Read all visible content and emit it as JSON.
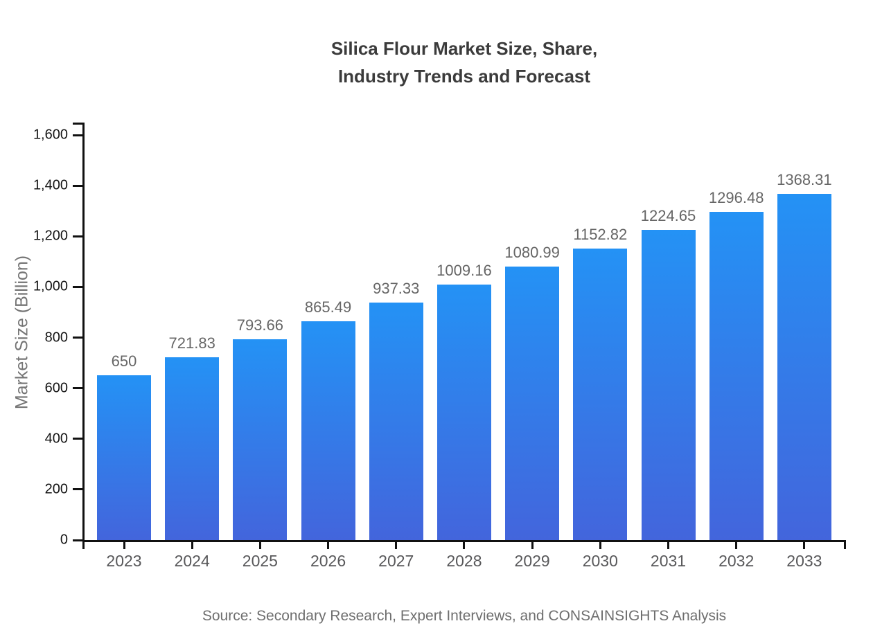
{
  "title": {
    "line1": "Silica Flour Market Size, Share,",
    "line2": "Industry Trends and Forecast"
  },
  "y_axis_label": "Market Size (Billion)",
  "source_caption": "Source: Secondary Research, Expert Interviews, and CONSAINSIGHTS Analysis",
  "colors": {
    "bar_gradient_top": "#2492f5",
    "bar_gradient_bottom": "#4365dc",
    "axis": "#111111",
    "title_text": "#3b3b3b",
    "y_tick_label": "#141414",
    "year_label": "#58585a",
    "value_label": "#666666",
    "axis_title": "#757575",
    "source_text": "#6e6e6e"
  },
  "chart_data": {
    "type": "bar",
    "title": "Silica Flour Market Size, Share, Industry Trends and Forecast",
    "categories": [
      "2023",
      "2024",
      "2025",
      "2026",
      "2027",
      "2028",
      "2029",
      "2030",
      "2031",
      "2032",
      "2033"
    ],
    "values": [
      650,
      721.83,
      793.66,
      865.49,
      937.33,
      1009.16,
      1080.99,
      1152.82,
      1224.65,
      1296.48,
      1368.31
    ],
    "value_labels": [
      "650",
      "721.83",
      "793.66",
      "865.49",
      "937.33",
      "1009.16",
      "1080.99",
      "1152.82",
      "1224.65",
      "1296.48",
      "1368.31"
    ],
    "xlabel": "",
    "ylabel": "Market Size (Billion)",
    "ylim": [
      0,
      1600
    ],
    "y_ticks": [
      {
        "value": 0,
        "label": "0"
      },
      {
        "value": 200,
        "label": "200"
      },
      {
        "value": 400,
        "label": "400"
      },
      {
        "value": 600,
        "label": "600"
      },
      {
        "value": 800,
        "label": "800"
      },
      {
        "value": 1000,
        "label": "1,000"
      },
      {
        "value": 1200,
        "label": "1,200"
      },
      {
        "value": 1400,
        "label": "1,400"
      },
      {
        "value": 1600,
        "label": "1,600"
      }
    ],
    "grid": false,
    "legend": false,
    "bar_gradient": [
      "#2492f5",
      "#4365dc"
    ]
  }
}
